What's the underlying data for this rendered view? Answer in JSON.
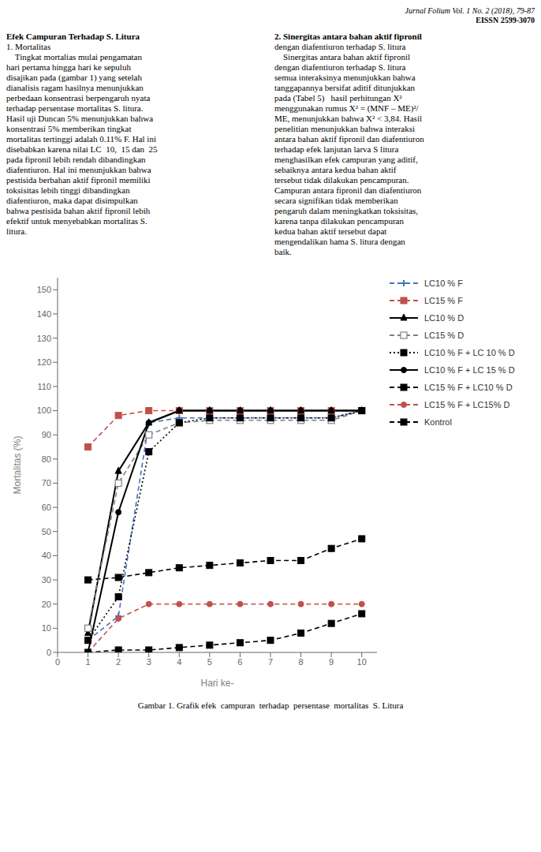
{
  "chart_data": {
    "type": "line",
    "title": "Gambar 1. Grafik efek  campuran  terhadap  persentase  mortalitas  S. Litura",
    "x_label": "Hari ke-",
    "y_label": "Mortalitas (%)",
    "x": [
      1,
      2,
      3,
      4,
      5,
      6,
      7,
      8,
      9,
      10
    ],
    "series": [
      {
        "name": "LC10 % F",
        "color": "#4472C4",
        "marker": "plus",
        "line_style": "dashed",
        "values": [
          5,
          15,
          95,
          97,
          97,
          97,
          97,
          97,
          97,
          100
        ]
      },
      {
        "name": "LC15 % F",
        "color": "#C0504D",
        "marker": "square",
        "line_style": "dashed",
        "values": [
          85,
          98,
          100,
          100,
          100,
          100,
          100,
          100,
          100,
          100
        ]
      },
      {
        "name": "LC10 % D",
        "color": "#000000",
        "marker": "triangle",
        "line_style": "solid",
        "values": [
          8,
          75,
          95,
          100,
          100,
          100,
          100,
          100,
          100,
          100
        ]
      },
      {
        "name": "LC15 % D",
        "color": "#808080",
        "marker": "square_open",
        "line_style": "dashed",
        "values": [
          10,
          70,
          90,
          95,
          96,
          96,
          96,
          96,
          96,
          100
        ]
      },
      {
        "name": "LC10 % F + LC 10 % D",
        "color": "#000000",
        "marker": "square",
        "line_style": "dotted",
        "values": [
          5,
          23,
          83,
          95,
          97,
          97,
          97,
          97,
          97,
          100
        ]
      },
      {
        "name": "LC10 % F + LC 15 % D",
        "color": "#000000",
        "marker": "circle",
        "line_style": "solid",
        "values": [
          0,
          58,
          95,
          100,
          100,
          100,
          100,
          100,
          100,
          100
        ]
      },
      {
        "name": "LC15 % F + LC10 % D",
        "color": "#000000",
        "marker": "square",
        "line_style": "dashed",
        "values": [
          30,
          31,
          33,
          35,
          36,
          37,
          38,
          38,
          43,
          47
        ]
      },
      {
        "name": "LC15 % F + LC15% D",
        "color": "#C0504D",
        "marker": "circle",
        "line_style": "dashed",
        "values": [
          0,
          14,
          20,
          20,
          20,
          20,
          20,
          20,
          20,
          20
        ]
      },
      {
        "name": "Kontrol",
        "color": "#000000",
        "marker": "square",
        "line_style": "dashed",
        "values": [
          0,
          1,
          1,
          2,
          3,
          4,
          5,
          8,
          12,
          16
        ]
      }
    ],
    "xlim": [
      0,
      10.5
    ],
    "xticks": [
      0,
      1,
      2,
      3,
      4,
      5,
      6,
      7,
      8,
      9,
      10
    ],
    "ylim": [
      0,
      155
    ],
    "yticks": [
      0,
      10,
      20,
      30,
      40,
      50,
      60,
      70,
      80,
      90,
      100,
      110,
      120,
      130,
      140,
      150
    ],
    "grid": false,
    "legend": "right",
    "annotations": [
      [
        "Jurnal Folium Vol. 1 No. 2 (2018), 79-87",
        "EISSN 2599-3070"
      ],
      [
        "Efek Campuran Terhadap S. Litura",
        "1. Mortalitas",
        "    Tingkat mortalias mulai pengamatan",
        "hari pertama hingga hari ke sepuluh",
        "disajikan pada (gambar 1) yang setelah",
        "dianalisis ragam hasilnya menunjukkan",
        "perbedaan konsentrasi berpengaruh nyata",
        "terhadap persentase mortalitas S. litura.",
        "Hasil uji Duncan 5% menunjukkan bahwa",
        "konsentrasi 5% memberikan tingkat",
        "mortalitas tertinggi adalah 0.11% F. Hal ini",
        "disebabkan karena nilai LC  10,  15 dan  25",
        "pada fipronil lebih rendah dibandingkan",
        "diafentiuron. Hal ini menunjukkan bahwa",
        "pestisida berbahan aktif fipronil memiliki",
        "toksisitas lebih tinggi dibandingkan",
        "diafentiuron, maka dapat disimpulkan",
        "bahwa pestisida bahan aktif fipronil lebih",
        "efektif untuk menyebabkan mortalitas S.",
        "litura."
      ],
      [
        "2. Sinergitas antara bahan aktif fipronil",
        "dengan diafentiuron terhadap S. litura",
        "    Sinergitas antara bahan aktif fipronil",
        "dengan diafentiuron terhadap S. litura",
        "semua interaksinya menunjukkan bahwa",
        "tanggapannya bersifat aditif ditunjukkan",
        "pada (Tabel 5)   hasil perhitungan X²",
        "menggunakan rumus X² = (MNF – ME)²/",
        "ME, menunjukkan bahwa X² < 3,84. Hasil",
        "penelitian menunjukkan bahwa interaksi",
        "antara bahan aktif fipronil dan diafentiuron",
        "terhadap efek lanjutan larva S litura",
        "menghasilkan efek campuran yang aditif,",
        "sebaiknya antara kedua bahan aktif",
        "tersebut tidak dilakukan pencampuran.",
        "Campuran antara fipronil dan diafentiuron",
        "secara signifikan tidak memberikan",
        "pengaruh dalam meningkatkan toksisitas,",
        "karena tanpa dilakukan pencampuran",
        "kedua bahan aktif tersebut dapat",
        "mengendalikan hama S. litura dengan",
        "baik."
      ]
    ]
  }
}
